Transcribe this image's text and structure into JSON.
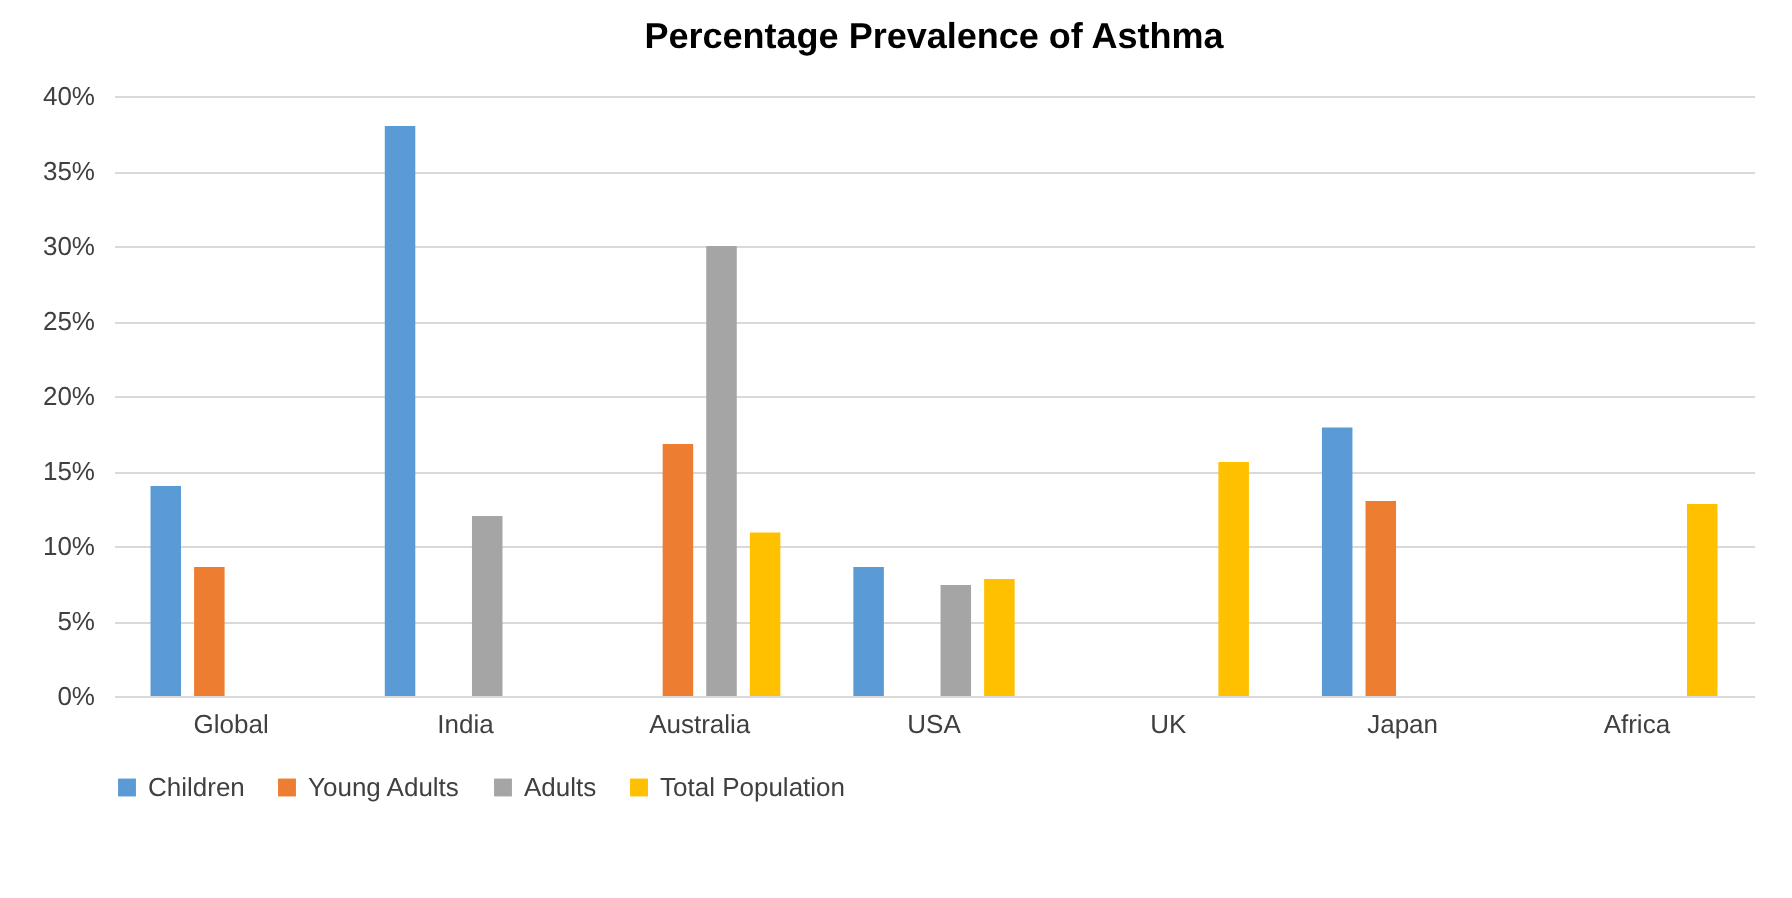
{
  "chart_data": {
    "type": "bar",
    "title": "Percentage Prevalence of Asthma",
    "categories": [
      "Global",
      "India",
      "Australia",
      "USA",
      "UK",
      "Japan",
      "Africa"
    ],
    "series": [
      {
        "name": "Children",
        "color": "#5b9bd5",
        "values": [
          14,
          38,
          null,
          8.6,
          null,
          17.9,
          null
        ]
      },
      {
        "name": "Young Adults",
        "color": "#ed7d31",
        "values": [
          8.6,
          null,
          16.8,
          null,
          null,
          13,
          null
        ]
      },
      {
        "name": "Adults",
        "color": "#a5a5a5",
        "values": [
          null,
          12,
          30,
          7.4,
          null,
          null,
          null
        ]
      },
      {
        "name": "Total Population",
        "color": "#ffc000",
        "values": [
          null,
          null,
          10.9,
          7.8,
          15.6,
          null,
          12.8
        ]
      }
    ],
    "ylim": [
      0,
      40
    ],
    "yticks": [
      {
        "value": 0,
        "label": "0%"
      },
      {
        "value": 5,
        "label": "5%"
      },
      {
        "value": 10,
        "label": "10%"
      },
      {
        "value": 15,
        "label": "15%"
      },
      {
        "value": 20,
        "label": "20%"
      },
      {
        "value": 25,
        "label": "25%"
      },
      {
        "value": 30,
        "label": "30%"
      },
      {
        "value": 35,
        "label": "35%"
      },
      {
        "value": 40,
        "label": "40%"
      }
    ],
    "grid": "y",
    "legend": "bottom"
  }
}
